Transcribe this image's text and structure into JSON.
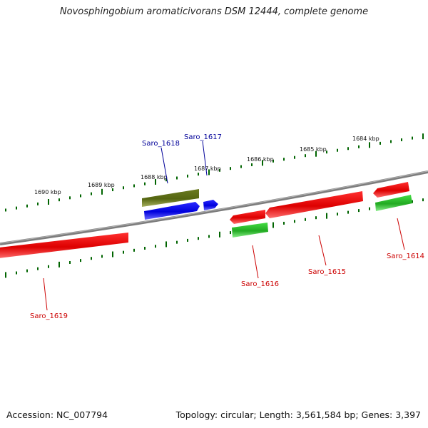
{
  "title": "Novosphingobium aromaticivorans DSM 12444, complete genome",
  "footer": {
    "accession": "Accession: NC_007794",
    "summary": "Topology: circular; Length: 3,561,584 bp; Genes: 3,397"
  },
  "ruler_labels": [
    "1690 kbp",
    "1689 kbp",
    "1688 kbp",
    "1687 kbp",
    "1686 kbp",
    "1685 kbp",
    "1684 kbp"
  ],
  "colors": {
    "backbone": "#808080",
    "tick": "#006400",
    "gene_plus": "#0000ee",
    "gene_minus": "#ee0000",
    "rna_minus": "#33bb33",
    "rna_plus": "#667722",
    "label_blue": "#000099",
    "label_red": "#cc0000"
  },
  "genes": [
    {
      "name": "Saro_1619",
      "strand": "minus"
    },
    {
      "name": "Saro_1618",
      "strand": "plus"
    },
    {
      "name": "Saro_1617",
      "strand": "plus"
    },
    {
      "name": "Saro_1616",
      "strand": "minus"
    },
    {
      "name": "Saro_1615",
      "strand": "minus"
    },
    {
      "name": "Saro_1614",
      "strand": "minus"
    }
  ]
}
